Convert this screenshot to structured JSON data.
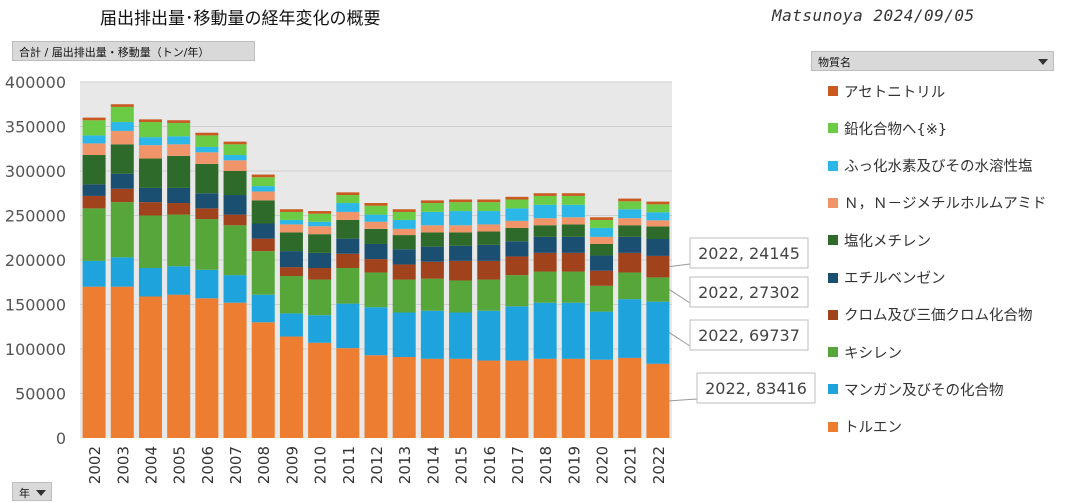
{
  "header": {
    "title": "届出排出量･移動量の経年変化の概要",
    "signature": "Matsunoya 2024/09/05"
  },
  "pivot": {
    "value_field": "合計 / 届出排出量・移動量（トン/年）",
    "filter_field": "物質名",
    "row_field": "年"
  },
  "chart_data": {
    "type": "bar",
    "stacked": true,
    "title": "届出排出量･移動量の経年変化の概要",
    "xlabel": "年",
    "ylabel": "合計 / 届出排出量・移動量（トン/年）",
    "ylim": [
      0,
      400000
    ],
    "yticks": [
      0,
      50000,
      100000,
      150000,
      200000,
      250000,
      300000,
      350000,
      400000
    ],
    "ytick_labels": [
      "0",
      "50000",
      "100000",
      "150000",
      "200000",
      "250000",
      "300000",
      "350000",
      "400000"
    ],
    "categories": [
      "2002",
      "2003",
      "2004",
      "2005",
      "2006",
      "2007",
      "2008",
      "2009",
      "2010",
      "2011",
      "2012",
      "2013",
      "2014",
      "2015",
      "2016",
      "2017",
      "2018",
      "2019",
      "2020",
      "2021",
      "2022"
    ],
    "series": [
      {
        "name": "トルエン",
        "color": "#ED7D31",
        "values": [
          170000,
          170000,
          159000,
          161000,
          157000,
          152000,
          130000,
          114000,
          107000,
          101000,
          93000,
          91000,
          89000,
          89000,
          87000,
          87000,
          89000,
          89000,
          88000,
          90000,
          83416
        ]
      },
      {
        "name": "マンガン及びその化合物",
        "color": "#1EA3DC",
        "values": [
          29000,
          33000,
          32000,
          32000,
          32000,
          31000,
          31000,
          26000,
          31000,
          50000,
          54000,
          50000,
          54000,
          52000,
          56000,
          61000,
          63000,
          63000,
          54000,
          66000,
          69737
        ]
      },
      {
        "name": "キシレン",
        "color": "#56A63A",
        "values": [
          59000,
          62000,
          59000,
          58000,
          57000,
          56000,
          49000,
          42000,
          40000,
          40000,
          39000,
          37000,
          36000,
          36000,
          35000,
          35000,
          35000,
          35000,
          29000,
          30000,
          27302
        ]
      },
      {
        "name": "クロム及び三価クロム化合物",
        "color": "#A0421C",
        "values": [
          14000,
          15000,
          15000,
          13000,
          12000,
          12000,
          14000,
          10000,
          13000,
          16000,
          15000,
          17000,
          19000,
          22000,
          21000,
          21000,
          21000,
          21000,
          17000,
          22000,
          24145
        ]
      },
      {
        "name": "エチルベンゼン",
        "color": "#1B4F72",
        "values": [
          13000,
          17000,
          16000,
          17000,
          17000,
          22000,
          17000,
          18000,
          17000,
          17000,
          17000,
          17000,
          17000,
          17000,
          18000,
          17000,
          18000,
          18000,
          17000,
          18000,
          19000
        ]
      },
      {
        "name": "塩化メチレン",
        "color": "#2E6B2A",
        "values": [
          33000,
          33000,
          33000,
          36000,
          33000,
          27000,
          26000,
          21000,
          21000,
          21000,
          17000,
          16000,
          16000,
          15000,
          15000,
          15000,
          13000,
          14000,
          13000,
          13000,
          14000
        ]
      },
      {
        "name": "Ｎ，Ｎ－ジメチルホルムアミド",
        "color": "#F0956A",
        "values": [
          13000,
          15000,
          15000,
          13000,
          13000,
          12000,
          10000,
          9000,
          9000,
          9000,
          8000,
          7000,
          8000,
          8000,
          8000,
          8000,
          8000,
          8000,
          8000,
          8000,
          7000
        ]
      },
      {
        "name": "ふっ化水素及びその水溶性塩",
        "color": "#2BB7E8",
        "values": [
          9000,
          10000,
          9000,
          9000,
          6000,
          6000,
          6000,
          5000,
          5000,
          10000,
          8000,
          10000,
          15000,
          16000,
          15000,
          14000,
          15000,
          14000,
          10000,
          10000,
          9000
        ]
      },
      {
        "name": "鉛化合物へ{※}",
        "color": "#6CCB44",
        "values": [
          17000,
          17000,
          17000,
          15000,
          13000,
          12000,
          10000,
          9000,
          9000,
          9000,
          10000,
          9000,
          10000,
          10000,
          10000,
          10000,
          10000,
          10000,
          9000,
          9000,
          9000
        ]
      },
      {
        "name": "アセトニトリル",
        "color": "#C85A1F",
        "values": [
          3000,
          3000,
          3000,
          3000,
          3000,
          3000,
          3000,
          3000,
          3000,
          3000,
          3000,
          3000,
          3000,
          3000,
          3000,
          3000,
          3000,
          3000,
          3000,
          3000,
          3000
        ]
      }
    ],
    "annotations": [
      {
        "label": "2022, 24145"
      },
      {
        "label": "2022, 27302"
      },
      {
        "label": "2022, 69737"
      },
      {
        "label": "2022, 83416"
      }
    ],
    "legend": {
      "position": "right",
      "order": "reverse"
    }
  }
}
